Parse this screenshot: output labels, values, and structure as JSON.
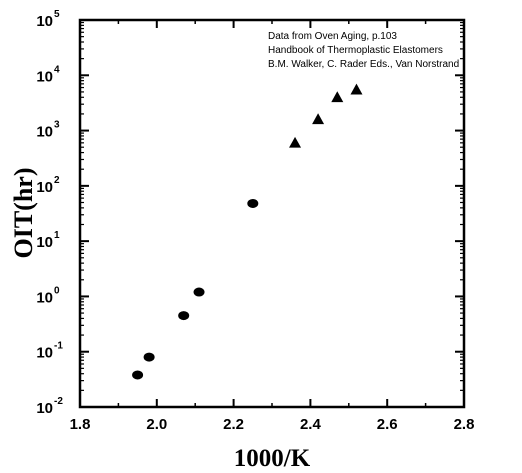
{
  "chart_data": {
    "type": "scatter",
    "title": "",
    "xlabel": "1000/K",
    "ylabel": "OIT(hr)",
    "xlim": [
      1.8,
      2.8
    ],
    "ylim": [
      0.01,
      100000
    ],
    "yscale": "log",
    "grid": false,
    "x_ticks": [
      "1.8",
      "2.0",
      "2.2",
      "2.4",
      "2.6",
      "2.8"
    ],
    "y_ticks": [
      {
        "base": "10",
        "exp": "-2",
        "value": 0.01
      },
      {
        "base": "10",
        "exp": "-1",
        "value": 0.1
      },
      {
        "base": "10",
        "exp": "0",
        "value": 1
      },
      {
        "base": "10",
        "exp": "1",
        "value": 10
      },
      {
        "base": "10",
        "exp": "2",
        "value": 100
      },
      {
        "base": "10",
        "exp": "3",
        "value": 1000
      },
      {
        "base": "10",
        "exp": "4",
        "value": 10000
      },
      {
        "base": "10",
        "exp": "5",
        "value": 100000
      }
    ],
    "annotations": [
      "Data from Oven Aging, p.103",
      "Handbook of Thermoplastic Elastomers",
      "B.M. Walker, C. Rader Eds., Van Norstrand"
    ],
    "series": [
      {
        "marker": "circle",
        "x": [
          1.95,
          1.98,
          2.07,
          2.11,
          2.25
        ],
        "y": [
          0.038,
          0.08,
          0.45,
          1.2,
          48
        ]
      },
      {
        "marker": "triangle",
        "x": [
          2.36,
          2.42,
          2.47,
          2.52
        ],
        "y": [
          600,
          1600,
          4000,
          5500
        ]
      }
    ]
  }
}
